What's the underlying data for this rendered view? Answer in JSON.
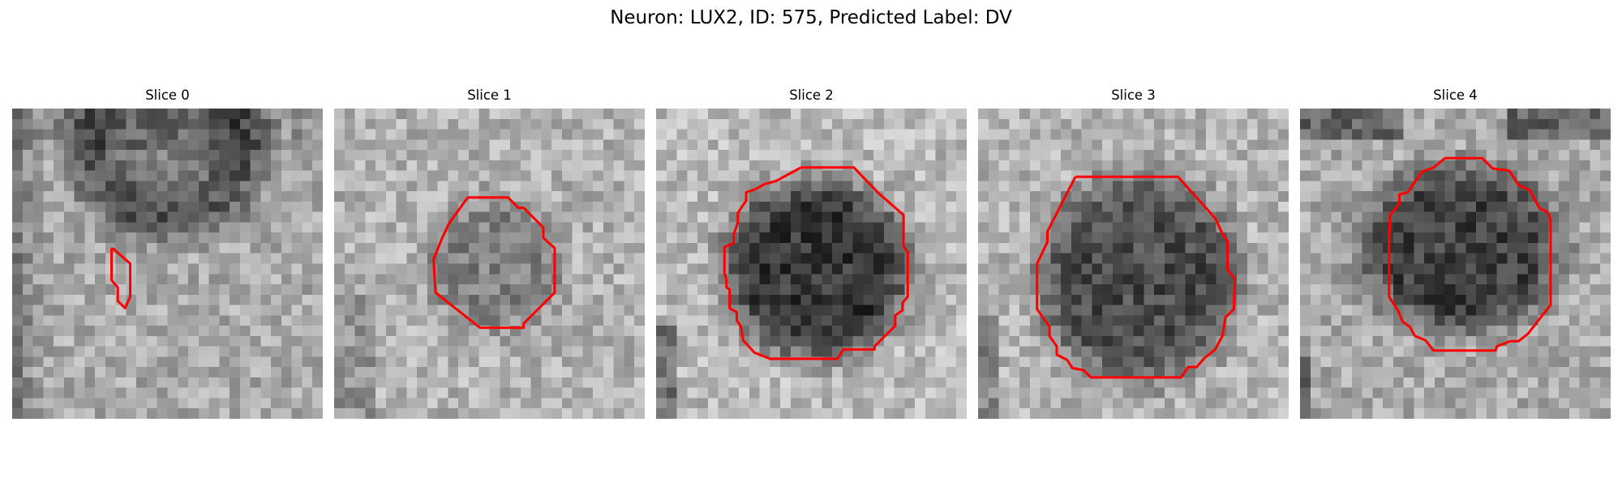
{
  "figure": {
    "title": "Neuron: LUX2, ID: 575, Predicted Label: DV"
  },
  "colors": {
    "background": "#ffffff",
    "contour": "#ff0000"
  },
  "image_style": "grayscale-microscopy-crop",
  "panels": [
    {
      "label": "Slice 0",
      "contour_shape": "small-elongated-sliver",
      "dark_region": "arc-band-upper-half"
    },
    {
      "label": "Slice 1",
      "contour_shape": "octagon",
      "dark_region": "faint-blob-center"
    },
    {
      "label": "Slice 2",
      "contour_shape": "irregular-polygon",
      "dark_region": "large-dark-blob-center"
    },
    {
      "label": "Slice 3",
      "contour_shape": "large-irregular-polygon",
      "dark_region": "large-dark-blob-center"
    },
    {
      "label": "Slice 4",
      "contour_shape": "tall-irregular-polygon",
      "dark_region": "dark-blob-center-with-dark-upper-band"
    }
  ]
}
